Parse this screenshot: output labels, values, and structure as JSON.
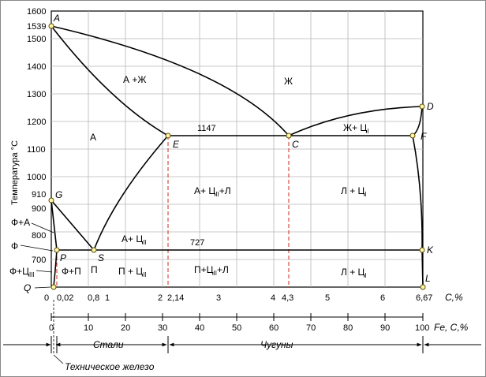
{
  "diagram": {
    "y_axis": {
      "label": "Температура °С",
      "ticks": [
        "1600",
        "1539",
        "1500",
        "1400",
        "1300",
        "1200",
        "1100",
        "1000",
        "910",
        "900",
        "800",
        "700"
      ]
    },
    "x_axis_carbon": {
      "ticks": [
        "0",
        "0,02",
        "0,8",
        "1",
        "2",
        "2,14",
        "3",
        "4",
        "4,3",
        "5",
        "6",
        "6,67"
      ],
      "unit": "С,%"
    },
    "x_axis_fe": {
      "ticks": [
        "0",
        "10",
        "20",
        "30",
        "40",
        "50",
        "60",
        "70",
        "80",
        "90",
        "100"
      ],
      "unit": "Fe, C,%"
    },
    "ranges": {
      "steels": "Стали",
      "cast_irons": "Чугуны",
      "technical_iron": "Техническое железо"
    },
    "points": {
      "A": "A",
      "D": "D",
      "E": "E",
      "C": "C",
      "F": "F",
      "G": "G",
      "P": "P",
      "S": "S",
      "K": "K",
      "Q": "Q",
      "L": "L"
    },
    "phase_labels": {
      "liquid": "Ж",
      "austenite_liquid": "А +Ж",
      "austenite": "А",
      "liquid_cementite1_main": "Ж+ Ц",
      "liquid_cementite1_sub": "I",
      "austenite_cementite2_ledeburite_main": "А+ Ц",
      "austenite_cementite2_ledeburite_sub": "II",
      "austenite_cementite2_ledeburite_tail": "+Л",
      "ledeburite_cementite1_upper_main": "Л + Ц",
      "ledeburite_cementite1_upper_sub": "I",
      "austenite_cementite2_main": "А+ Ц",
      "austenite_cementite2_sub": "II",
      "ferrite_austenite": "Ф+А",
      "ferrite": "Ф",
      "ferrite_cementite3_main": "Ф+Ц",
      "ferrite_cementite3_sub": "III",
      "ferrite_pearlite": "Ф+П",
      "pearlite": "П",
      "pearlite_cementite2_main": "П + Ц",
      "pearlite_cementite2_sub": "II",
      "pearlite_cementite2_ledeburite_main": "П+Ц",
      "pearlite_cementite2_ledeburite_sub": "II",
      "pearlite_cementite2_ledeburite_tail": "+Л",
      "ledeburite_cementite1_lower_main": "Л + Ц",
      "ledeburite_cementite1_lower_sub": "I"
    },
    "isotherms": {
      "eutectic": "1147",
      "eutectoid": "727"
    }
  }
}
